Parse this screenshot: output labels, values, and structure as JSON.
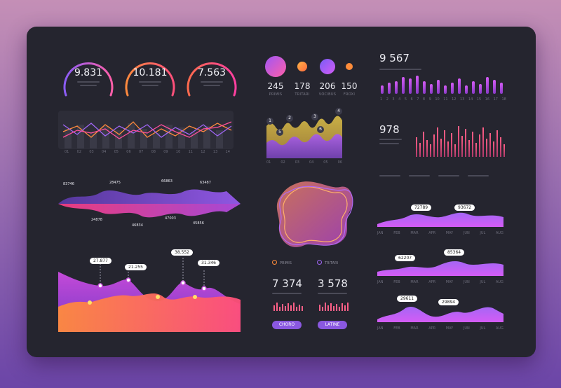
{
  "gauges": [
    {
      "value": "9.831",
      "color_start": "#8a5cf6",
      "color_end": "#ff5fa8"
    },
    {
      "value": "10.181",
      "color_start": "#ff8a3d",
      "color_end": "#ff4f7b"
    },
    {
      "value": "7.563",
      "color_start": "#ff6a4d",
      "color_end": "#ff3fa0"
    }
  ],
  "stats": [
    {
      "value": "245",
      "label": "PRIMIS",
      "color": "#b05cf0"
    },
    {
      "value": "178",
      "label": "TRITARI",
      "color": "#ff8c3a"
    },
    {
      "value": "206",
      "label": "VOCIBUS",
      "color": "#a066f5"
    },
    {
      "value": "150",
      "label": "FROXI",
      "color": "#ff8c3a"
    }
  ],
  "top_right": {
    "value": "9 567",
    "ticks": [
      "1",
      "2",
      "3",
      "4",
      "5",
      "6",
      "7",
      "8",
      "9",
      "10",
      "11",
      "12",
      "13",
      "14",
      "15",
      "16",
      "17",
      "18"
    ]
  },
  "mid_right": {
    "value": "978"
  },
  "line_chart_ticks": [
    "01",
    "02",
    "03",
    "04",
    "05",
    "06",
    "07",
    "08",
    "09",
    "10",
    "11",
    "12",
    "13",
    "14"
  ],
  "waves_ticks": [
    "01",
    "02",
    "03",
    "04",
    "05",
    "06"
  ],
  "wave_markers": [
    "1",
    "5",
    "2",
    "3",
    "6",
    "4"
  ],
  "stream_labels": {
    "top": [
      "83746",
      "28475",
      "66863",
      "63487"
    ],
    "bottom": [
      "24878",
      "46834",
      "47003",
      "45856"
    ]
  },
  "area_callouts": [
    "27.877",
    "21.255",
    "38.552",
    "31.346"
  ],
  "blob_legend": [
    {
      "label": "PRIMIS",
      "color": "#ff8c3a"
    },
    {
      "label": "TRITARI",
      "color": "#a066f5"
    }
  ],
  "bottom_stats": [
    {
      "value": "7 374",
      "button": "CHORO"
    },
    {
      "value": "3 578",
      "button": "LATINE"
    }
  ],
  "month_axis": [
    "JAN",
    "FEB",
    "MAR",
    "APR",
    "MAY",
    "JUN",
    "JUL",
    "AUG"
  ],
  "small_areas": [
    {
      "callouts": [
        "72789",
        "93672"
      ]
    },
    {
      "callouts": [
        "62207",
        "85364"
      ]
    },
    {
      "callouts": [
        "29611",
        "29894"
      ]
    }
  ]
}
